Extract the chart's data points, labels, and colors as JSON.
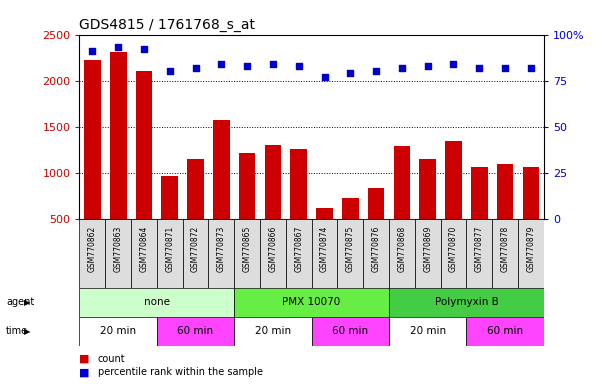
{
  "title": "GDS4815 / 1761768_s_at",
  "samples": [
    "GSM770862",
    "GSM770863",
    "GSM770864",
    "GSM770871",
    "GSM770872",
    "GSM770873",
    "GSM770865",
    "GSM770866",
    "GSM770867",
    "GSM770874",
    "GSM770875",
    "GSM770876",
    "GSM770868",
    "GSM770869",
    "GSM770870",
    "GSM770877",
    "GSM770878",
    "GSM770879"
  ],
  "counts": [
    2220,
    2310,
    2100,
    960,
    1150,
    1570,
    1210,
    1300,
    1260,
    620,
    730,
    840,
    1290,
    1150,
    1350,
    1060,
    1100,
    1060
  ],
  "percentiles": [
    91,
    93,
    92,
    80,
    82,
    84,
    83,
    84,
    83,
    77,
    79,
    80,
    82,
    83,
    84,
    82,
    82,
    82
  ],
  "ylim_left": [
    500,
    2500
  ],
  "ylim_right": [
    0,
    100
  ],
  "yticks_left": [
    500,
    1000,
    1500,
    2000,
    2500
  ],
  "yticks_right": [
    0,
    25,
    50,
    75,
    100
  ],
  "bar_color": "#cc0000",
  "dot_color": "#0000cc",
  "agent_groups": [
    {
      "label": "none",
      "start": 0,
      "end": 6,
      "color": "#ccffcc"
    },
    {
      "label": "PMX 10070",
      "start": 6,
      "end": 12,
      "color": "#66ee44"
    },
    {
      "label": "Polymyxin B",
      "start": 12,
      "end": 18,
      "color": "#44cc44"
    }
  ],
  "time_groups": [
    {
      "label": "20 min",
      "start": 0,
      "end": 3,
      "color": "#ffffff"
    },
    {
      "label": "60 min",
      "start": 3,
      "end": 6,
      "color": "#ff44ff"
    },
    {
      "label": "20 min",
      "start": 6,
      "end": 9,
      "color": "#ffffff"
    },
    {
      "label": "60 min",
      "start": 9,
      "end": 12,
      "color": "#ff44ff"
    },
    {
      "label": "20 min",
      "start": 12,
      "end": 15,
      "color": "#ffffff"
    },
    {
      "label": "60 min",
      "start": 15,
      "end": 18,
      "color": "#ff44ff"
    }
  ],
  "tick_label_color_left": "#cc0000",
  "tick_label_color_right": "#0000cc",
  "legend_count_color": "#cc0000",
  "legend_pct_color": "#0000cc",
  "label_box_color": "#dddddd"
}
